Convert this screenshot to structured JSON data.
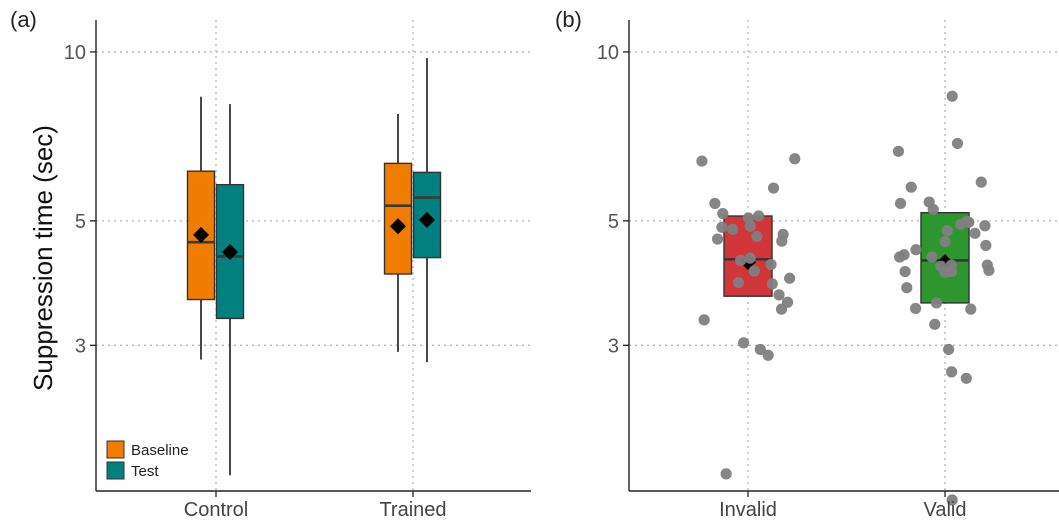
{
  "colors": {
    "baseline": "#F07C00",
    "test": "#00807F",
    "invalid": "#D0363A",
    "valid": "#2E962E",
    "points": "#808080",
    "mean_marker": "#000000"
  },
  "chart_data": [
    {
      "panel": "(a)",
      "type": "box",
      "ylabel": "Suppression time (sec)",
      "xlabel": "",
      "yscale": "log",
      "ylim": [
        1.65,
        11.4
      ],
      "yticks": [
        3,
        5,
        10
      ],
      "grid": true,
      "legend_position": "bottom-left",
      "categories": [
        "Control",
        "Trained"
      ],
      "series": [
        {
          "name": "Baseline",
          "color_key": "baseline",
          "boxes": [
            {
              "category": "Control",
              "whisker_low": 2.83,
              "q1": 3.62,
              "median": 4.58,
              "q3": 6.13,
              "whisker_high": 8.32,
              "mean": 4.72
            },
            {
              "category": "Trained",
              "whisker_low": 2.92,
              "q1": 4.02,
              "median": 5.32,
              "q3": 6.33,
              "whisker_high": 7.75,
              "mean": 4.89
            }
          ]
        },
        {
          "name": "Test",
          "color_key": "test",
          "boxes": [
            {
              "category": "Control",
              "whisker_low": 1.76,
              "q1": 3.35,
              "median": 4.32,
              "q3": 5.8,
              "whisker_high": 8.07,
              "mean": 4.4
            },
            {
              "category": "Trained",
              "whisker_low": 2.8,
              "q1": 4.3,
              "median": 5.5,
              "q3": 6.1,
              "whisker_high": 9.75,
              "mean": 5.02
            }
          ]
        }
      ]
    },
    {
      "panel": "(b)",
      "type": "box",
      "xlabel": "",
      "yscale": "log",
      "ylim": [
        1.65,
        11.4
      ],
      "yticks": [
        3,
        5,
        10
      ],
      "grid": true,
      "categories": [
        "Invalid",
        "Valid"
      ],
      "boxes": [
        {
          "category": "Invalid",
          "color_key": "invalid",
          "q1": 3.67,
          "median": 4.27,
          "q3": 5.1,
          "mean": 4.22,
          "points": [
            4.64,
            4.18,
            4.07,
            3.03,
            1.77,
            3.69,
            3.86,
            5.06,
            4.89,
            4.29,
            6.39,
            4.69,
            5.1,
            3.88,
            3.48,
            4.83,
            4.25,
            5.15,
            6.45,
            2.88,
            4.73,
            4.6,
            3.33,
            2.95,
            3.95,
            4.87,
            5.72,
            5.37,
            3.58
          ]
        },
        {
          "category": "Valid",
          "color_key": "valid",
          "q1": 3.57,
          "median": 4.25,
          "q3": 5.17,
          "mean": 4.22,
          "points": [
            4.31,
            4.35,
            4.31,
            5.4,
            4.17,
            2.95,
            2.69,
            4.17,
            1.59,
            4.06,
            5.24,
            4.9,
            4.75,
            4.44,
            4.97,
            4.93,
            4.08,
            4.15,
            4.52,
            4.59,
            4.8,
            4.05,
            3.8,
            4.06,
            3.57,
            5.86,
            8.34,
            5.74,
            4.06,
            3.48,
            6.65,
            6.87,
            5.37,
            3.27,
            3.49,
            4.99,
            2.62
          ]
        }
      ]
    }
  ]
}
